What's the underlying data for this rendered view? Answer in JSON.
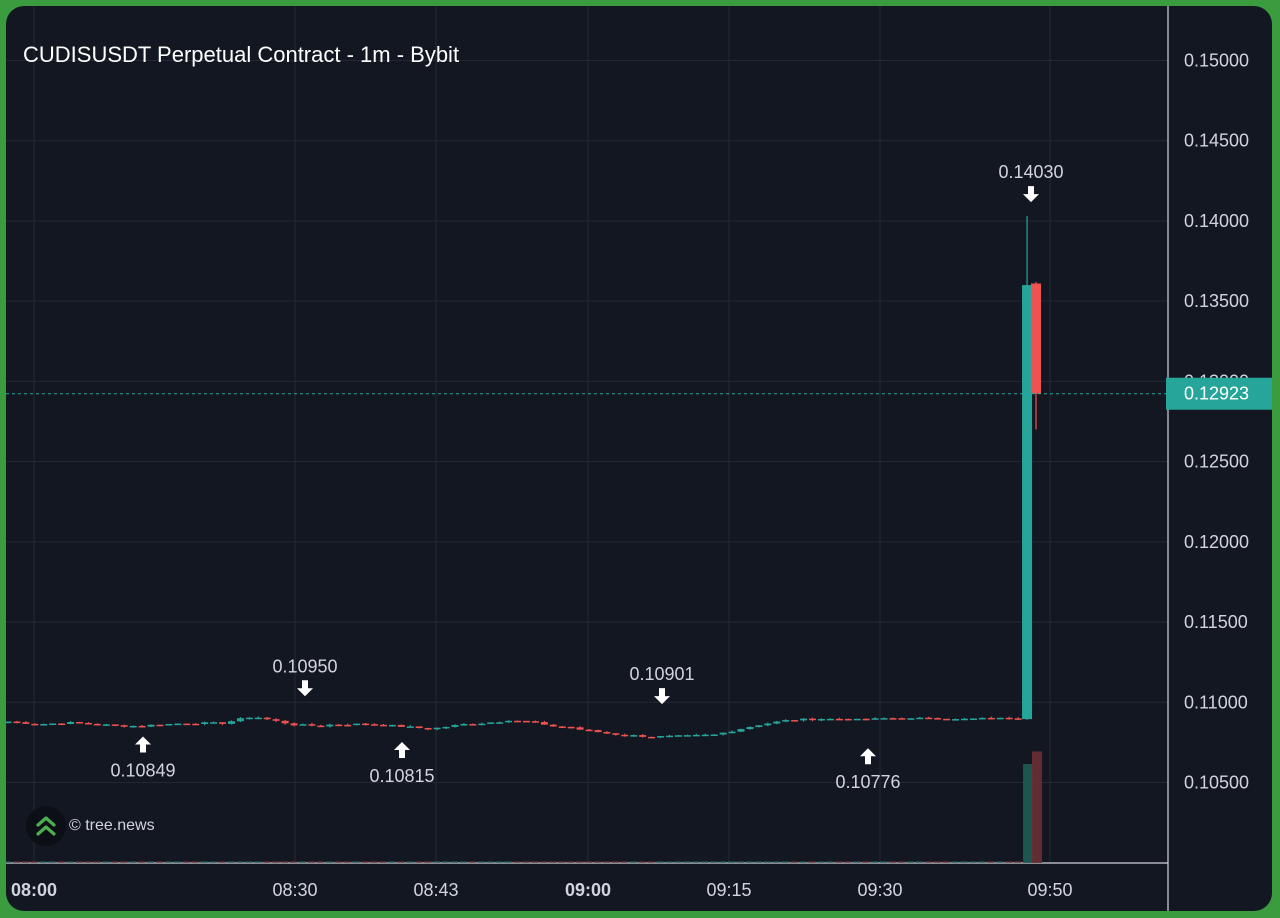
{
  "chart_data": {
    "type": "candlestick",
    "title": "CUDISUSDT Perpetual Contract - 1m - Bybit",
    "y_axis": {
      "ticks": [
        "0.15000",
        "0.14500",
        "0.14000",
        "0.13500",
        "0.13000",
        "0.12500",
        "0.12000",
        "0.11500",
        "0.11000",
        "0.10500"
      ],
      "range": [
        0.1,
        0.153
      ],
      "grid": true
    },
    "x_axis": {
      "ticks": [
        {
          "label": "08:00",
          "bold": true
        },
        {
          "label": "08:30",
          "bold": false
        },
        {
          "label": "08:43",
          "bold": false
        },
        {
          "label": "09:00",
          "bold": true
        },
        {
          "label": "09:15",
          "bold": false
        },
        {
          "label": "09:30",
          "bold": false
        },
        {
          "label": "09:50",
          "bold": false
        }
      ],
      "grid": true
    },
    "current_price": {
      "label": "0.12923",
      "value": 0.12923,
      "color": "#26a69a"
    },
    "annotations": [
      {
        "label": "0.10849",
        "value": 0.10849,
        "type": "low"
      },
      {
        "label": "0.10950",
        "value": 0.1095,
        "type": "high"
      },
      {
        "label": "0.10815",
        "value": 0.10815,
        "type": "low"
      },
      {
        "label": "0.10901",
        "value": 0.10901,
        "type": "high"
      },
      {
        "label": "0.10776",
        "value": 0.10776,
        "type": "low"
      },
      {
        "label": "0.14030",
        "value": 0.1403,
        "type": "high"
      }
    ],
    "colors": {
      "up": "#26a69a",
      "down": "#ef5350",
      "grid": "#232834",
      "text": "#d1d4dc",
      "background": "#131722"
    },
    "series": [
      {
        "name": "",
        "interval": "1m",
        "ohlc_anchors_close": [
          [
            0.1088,
            0.1086
          ],
          [
            0.10865,
            0.10875
          ],
          [
            0.1087,
            0.10855
          ],
          [
            0.10855,
            0.1085
          ],
          [
            0.10858,
            0.1087
          ],
          [
            0.1087,
            0.1087
          ],
          [
            0.1087,
            0.1092
          ],
          [
            0.10905,
            0.1086
          ],
          [
            0.1086,
            0.1085
          ],
          [
            0.1086,
            0.10865
          ],
          [
            0.10865,
            0.1085
          ],
          [
            0.1085,
            0.1083
          ],
          [
            0.1084,
            0.1087
          ],
          [
            0.10865,
            0.10885
          ],
          [
            0.1089,
            0.1087
          ],
          [
            0.10855,
            0.1084
          ],
          [
            0.1083,
            0.108
          ],
          [
            0.108,
            0.10785
          ],
          [
            0.10785,
            0.1079
          ],
          [
            0.1079,
            0.108
          ],
          [
            0.1081,
            0.1086
          ],
          [
            0.1086,
            0.10895
          ],
          [
            0.1089,
            0.109
          ],
          [
            0.136,
            0.12923
          ]
        ]
      }
    ]
  },
  "watermark": {
    "text": "© tree.news",
    "logo_icon": "double-chevron-up-icon"
  }
}
